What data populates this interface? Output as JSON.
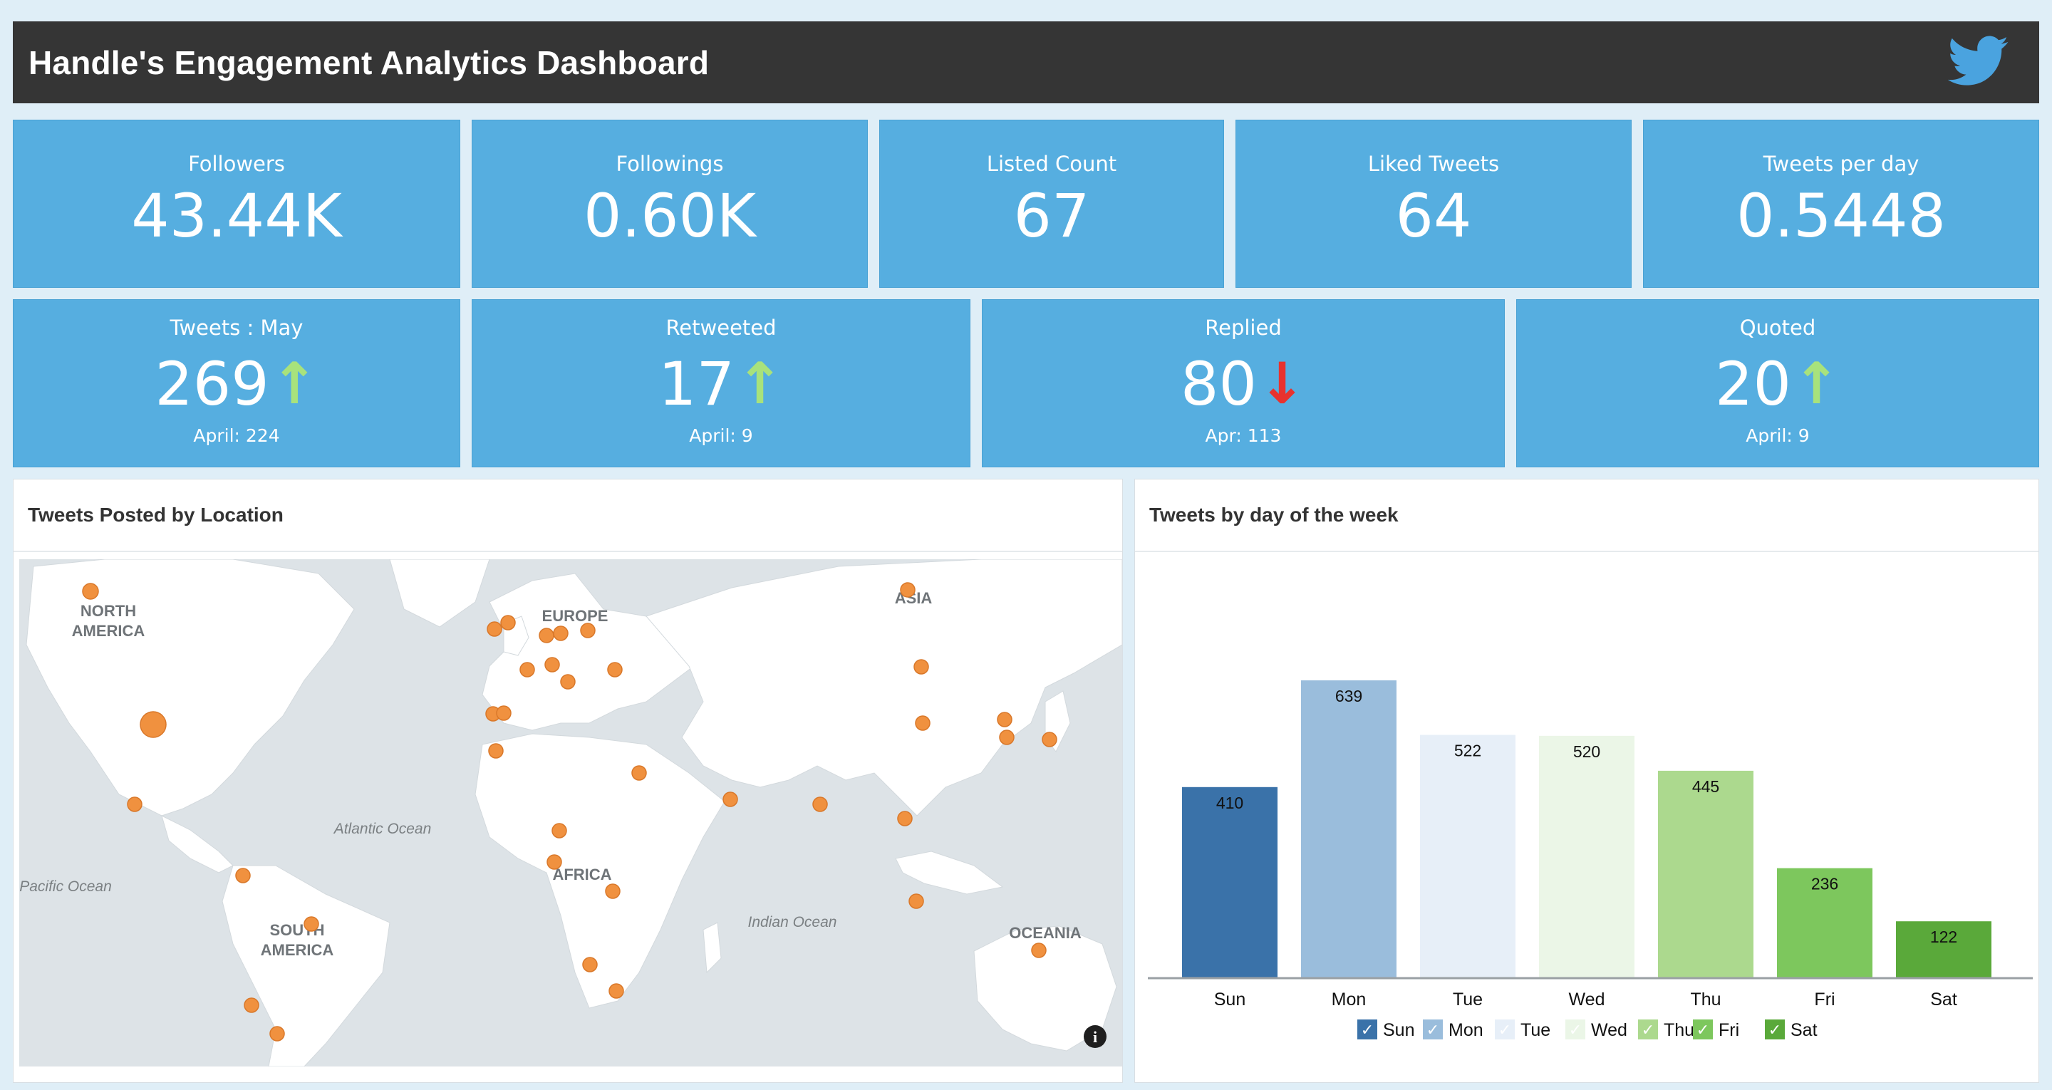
{
  "header": {
    "title": "Handle's Engagement Analytics Dashboard",
    "icon": "twitter-bird-icon"
  },
  "kpis_row1": [
    {
      "label": "Followers",
      "value": "43.44K"
    },
    {
      "label": "Followings",
      "value": "0.60K"
    },
    {
      "label": "Listed Count",
      "value": "67"
    },
    {
      "label": "Liked Tweets",
      "value": "64"
    },
    {
      "label": "Tweets per day",
      "value": "0.5448"
    }
  ],
  "kpis_row2": [
    {
      "label": "Tweets : May",
      "value": "269",
      "trend": "up",
      "sub": "April: 224"
    },
    {
      "label": "Retweeted",
      "value": "17",
      "trend": "up",
      "sub": "April: 9"
    },
    {
      "label": "Replied",
      "value": "80",
      "trend": "down",
      "sub": "Apr: 113"
    },
    {
      "label": "Quoted",
      "value": "20",
      "trend": "up",
      "sub": "April: 9"
    }
  ],
  "map": {
    "title": "Tweets Posted by Location",
    "labels": {
      "north_america": [
        "NORTH",
        "AMERICA"
      ],
      "south_america": [
        "SOUTH",
        "AMERICA"
      ],
      "europe": "EUROPE",
      "africa": "AFRICA",
      "asia": "ASIA",
      "oceania": "OCEANIA",
      "atlantic": "Atlantic Ocean",
      "pacific": "Pacific Ocean",
      "indian": "Indian Ocean"
    },
    "marker_color": "#f0913f",
    "info_icon": "info-icon"
  },
  "chart": {
    "title": "Tweets by day of the week"
  },
  "chart_data": {
    "type": "bar",
    "title": "Tweets by day of the week",
    "categories": [
      "Sun",
      "Mon",
      "Tue",
      "Wed",
      "Thu",
      "Fri",
      "Sat"
    ],
    "values": [
      410,
      639,
      522,
      520,
      445,
      236,
      122
    ],
    "colors": [
      "#3a72a9",
      "#9abddc",
      "#e7eff8",
      "#ebf6e7",
      "#acd98e",
      "#7dc75d",
      "#5aa93a"
    ],
    "ylim": [
      0,
      700
    ],
    "grid": false,
    "legend": "bottom",
    "legend_items": [
      "Sun",
      "Mon",
      "Tue",
      "Wed",
      "Thu",
      "Fri",
      "Sat"
    ]
  }
}
